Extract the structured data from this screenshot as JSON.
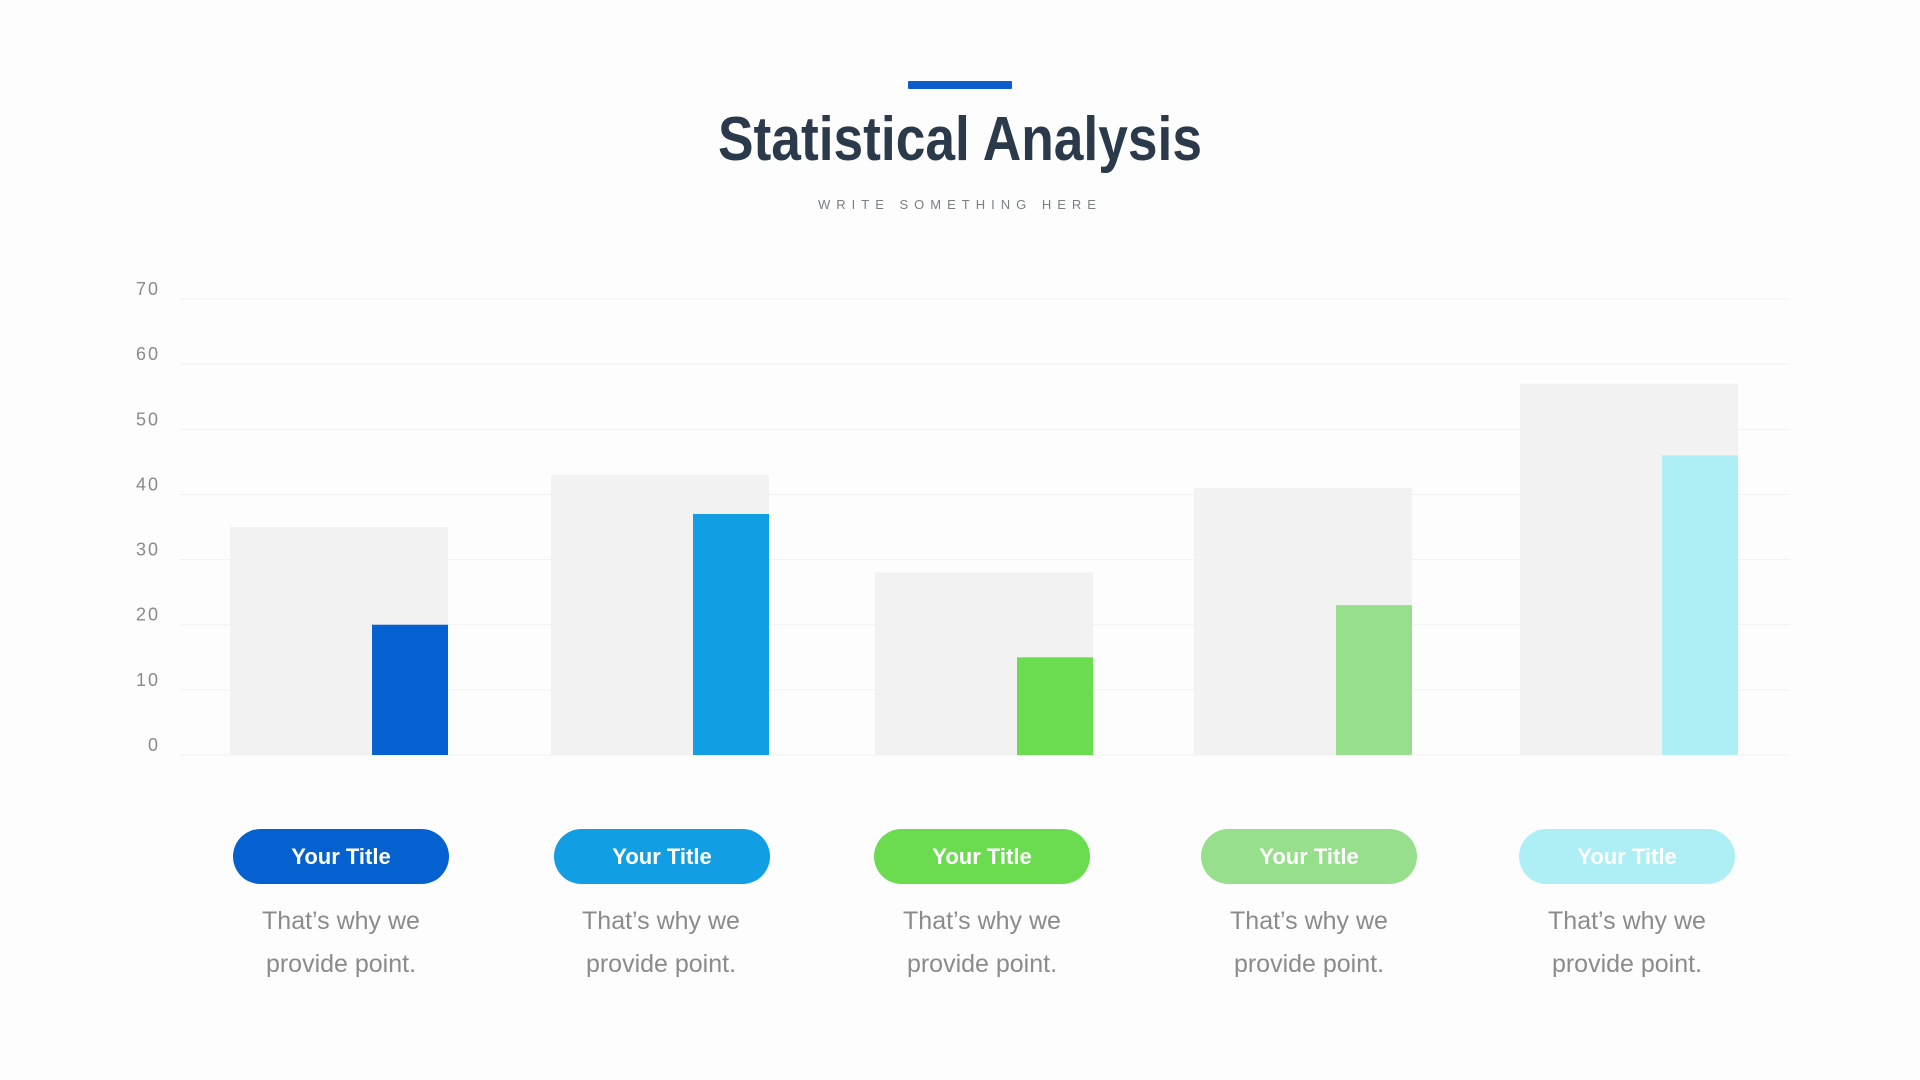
{
  "header": {
    "title": "Statistical Analysis",
    "subtitle": "WRITE SOMETHING HERE",
    "accent_color": "#0b5ccc"
  },
  "chart_data": {
    "type": "bar",
    "categories": [
      "Your Title",
      "Your Title",
      "Your Title",
      "Your Title",
      "Your Title"
    ],
    "series": [
      {
        "values": [
          35,
          43,
          28,
          41,
          57
        ],
        "color": "#f2f2f2"
      },
      {
        "values": [
          20,
          37,
          15,
          23,
          46
        ]
      }
    ],
    "colors": [
      "#0561cf",
      "#129ee3",
      "#6bdc4f",
      "#97df8d",
      "#aeeff5"
    ],
    "yticks": [
      "0",
      "10",
      "20",
      "30",
      "40",
      "50",
      "60",
      "70"
    ],
    "ylim": [
      0,
      70
    ],
    "grid": true
  },
  "cards": [
    {
      "title": "Your Title",
      "line1": "That’s why we",
      "line2": "provide point."
    },
    {
      "title": "Your Title",
      "line1": "That’s why we",
      "line2": "provide point."
    },
    {
      "title": "Your Title",
      "line1": "That’s why we",
      "line2": "provide point."
    },
    {
      "title": "Your Title",
      "line1": "That’s why we",
      "line2": "provide point."
    },
    {
      "title": "Your Title",
      "line1": "That’s why we",
      "line2": "provide point."
    }
  ]
}
